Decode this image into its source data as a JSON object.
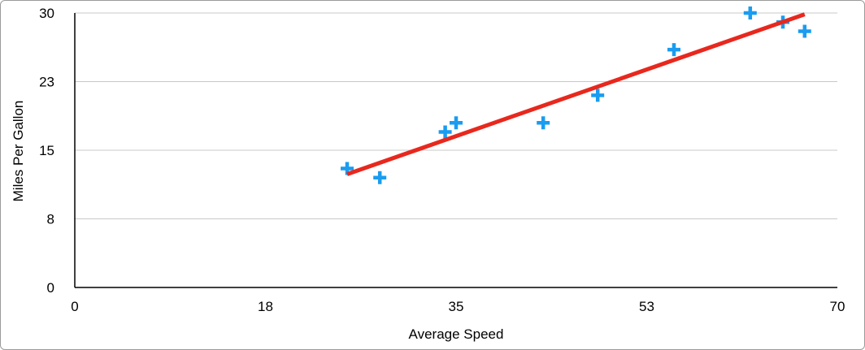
{
  "chart_data": {
    "type": "scatter",
    "xlabel": "Average Speed",
    "ylabel": "Miles Per Gallon",
    "xlim": [
      0,
      70
    ],
    "ylim": [
      0,
      30
    ],
    "x_ticks": [
      0,
      17.5,
      35,
      52.5,
      70
    ],
    "x_tick_labels": [
      "0",
      "18",
      "35",
      "53",
      "70"
    ],
    "y_ticks": [
      0,
      7.5,
      15,
      22.5,
      30
    ],
    "y_tick_labels": [
      "0",
      "8",
      "15",
      "23",
      "30"
    ],
    "grid": "horizontal",
    "marker": "plus",
    "marker_color": "#1a9cf0",
    "trendline": {
      "type": "linear",
      "color": "#e8281e"
    },
    "points": [
      {
        "x": 25,
        "y": 13
      },
      {
        "x": 28,
        "y": 12
      },
      {
        "x": 34,
        "y": 17
      },
      {
        "x": 35,
        "y": 18
      },
      {
        "x": 43,
        "y": 18
      },
      {
        "x": 48,
        "y": 21
      },
      {
        "x": 55,
        "y": 26
      },
      {
        "x": 62,
        "y": 30
      },
      {
        "x": 65,
        "y": 29
      },
      {
        "x": 67,
        "y": 28
      }
    ]
  }
}
